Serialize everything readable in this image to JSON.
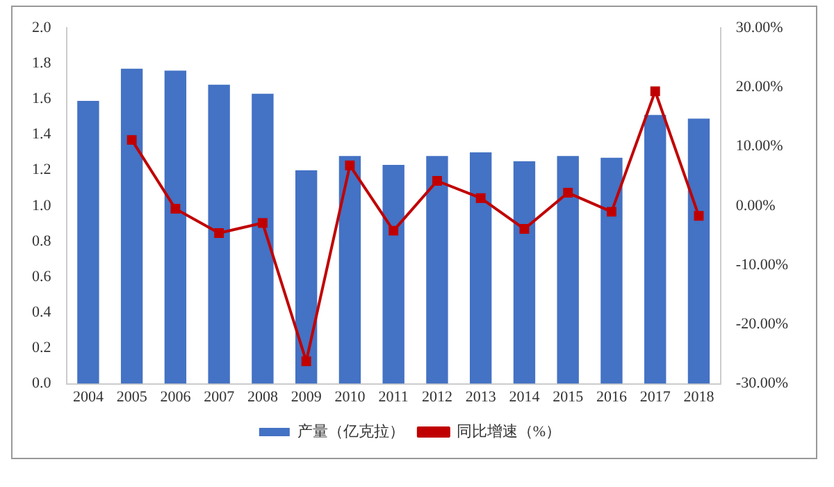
{
  "chart_data": {
    "type": "bar",
    "categories": [
      "2004",
      "2005",
      "2006",
      "2007",
      "2008",
      "2009",
      "2010",
      "2011",
      "2012",
      "2013",
      "2014",
      "2015",
      "2016",
      "2017",
      "2018"
    ],
    "series": [
      {
        "name": "产量（亿克拉）",
        "color": "#4472c4",
        "values": [
          1.59,
          1.77,
          1.76,
          1.68,
          1.63,
          1.2,
          1.28,
          1.23,
          1.28,
          1.3,
          1.25,
          1.28,
          1.27,
          1.51,
          1.49
        ]
      },
      {
        "name": "同比增速（%）",
        "type": "line",
        "axis": "y2",
        "color": "#c00000",
        "marker": "square",
        "values": [
          null,
          11.1,
          -0.5,
          -4.6,
          -2.9,
          -26.2,
          6.8,
          -4.2,
          4.2,
          1.3,
          -3.9,
          2.2,
          -1.0,
          19.3,
          -1.7
        ]
      }
    ],
    "ylim": [
      0,
      2.0
    ],
    "yticks": [
      {
        "value": 0,
        "label": "0.0"
      },
      {
        "value": 0.2,
        "label": "0.2"
      },
      {
        "value": 0.4,
        "label": "0.4"
      },
      {
        "value": 0.6,
        "label": "0.6"
      },
      {
        "value": 0.8,
        "label": "0.8"
      },
      {
        "value": 1.0,
        "label": "1.0"
      },
      {
        "value": 1.2,
        "label": "1.2"
      },
      {
        "value": 1.4,
        "label": "1.4"
      },
      {
        "value": 1.6,
        "label": "1.6"
      },
      {
        "value": 1.8,
        "label": "1.8"
      },
      {
        "value": 2.0,
        "label": "2.0"
      }
    ],
    "y2lim": [
      -30,
      30
    ],
    "y2ticks": [
      {
        "value": -30,
        "label": "-30.00%"
      },
      {
        "value": -20,
        "label": "-20.00%"
      },
      {
        "value": -10,
        "label": "-10.00%"
      },
      {
        "value": 0,
        "label": "0.00%"
      },
      {
        "value": 10,
        "label": "10.00%"
      },
      {
        "value": 20,
        "label": "20.00%"
      },
      {
        "value": 30,
        "label": "30.00%"
      }
    ],
    "grid": false,
    "legend": "bottom"
  }
}
